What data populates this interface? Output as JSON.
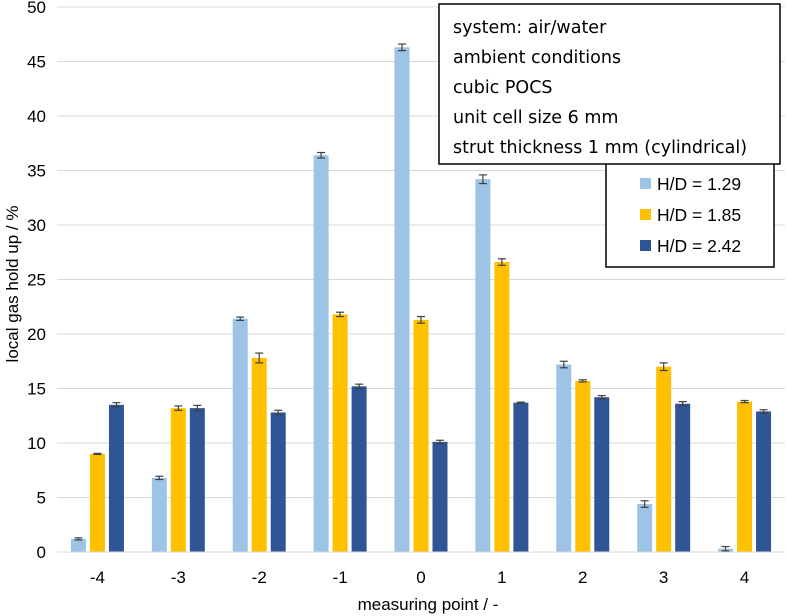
{
  "chart_data": {
    "type": "bar",
    "categories": [
      "-4",
      "-3",
      "-2",
      "-1",
      "0",
      "1",
      "2",
      "3",
      "4"
    ],
    "series": [
      {
        "name": "H/D = 1.29",
        "color": "#9DC3E6",
        "values": [
          1.2,
          6.8,
          21.4,
          36.4,
          46.3,
          34.2,
          17.2,
          4.4,
          0.3
        ],
        "errors": [
          0.1,
          0.15,
          0.15,
          0.25,
          0.3,
          0.4,
          0.3,
          0.3,
          0.2
        ]
      },
      {
        "name": "H/D = 1.85",
        "color": "#FFC000",
        "values": [
          9.0,
          13.2,
          17.8,
          21.8,
          21.3,
          26.6,
          15.7,
          17.0,
          13.8
        ],
        "errors": [
          0.05,
          0.2,
          0.45,
          0.2,
          0.3,
          0.3,
          0.1,
          0.35,
          0.1
        ]
      },
      {
        "name": "H/D = 2.42",
        "color": "#2F5597",
        "values": [
          13.5,
          13.2,
          12.8,
          15.2,
          10.1,
          13.7,
          14.2,
          13.6,
          12.9
        ],
        "errors": [
          0.2,
          0.25,
          0.2,
          0.2,
          0.15,
          0.05,
          0.15,
          0.2,
          0.15
        ]
      }
    ],
    "xlabel": "measuring point / -",
    "ylabel": "local gas hold up / %",
    "ylim": [
      0,
      50
    ],
    "yticks": [
      "0",
      "5",
      "10",
      "15",
      "20",
      "25",
      "30",
      "35",
      "40",
      "45",
      "50"
    ],
    "grid": "horizontal",
    "legend_position": "top-right",
    "annotation_lines": [
      "system: air/water",
      "ambient conditions",
      "cubic POCS",
      "unit cell size 6 mm",
      "strut thickness 1 mm (cylindrical)"
    ],
    "error_bar_color": "#404040",
    "grid_color": "#D9D9D9"
  }
}
